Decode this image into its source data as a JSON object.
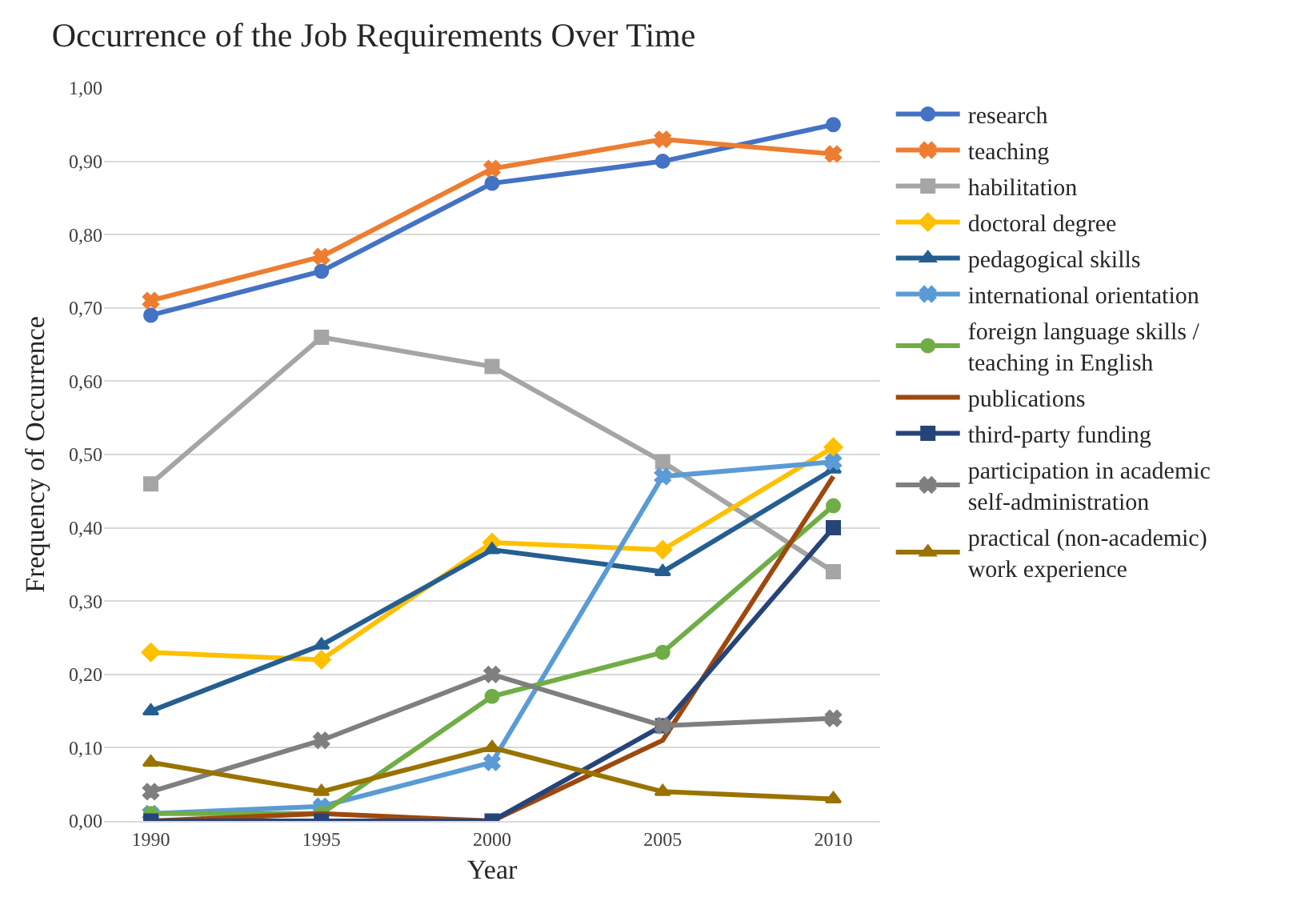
{
  "chart_data": {
    "type": "line",
    "title": "Occurrence of the Job Requirements Over Time",
    "xlabel": "Year",
    "ylabel": "Frequency of Occurrence",
    "categories": [
      "1990",
      "1995",
      "2000",
      "2005",
      "2010"
    ],
    "ylim": [
      0,
      1
    ],
    "yticks": [
      {
        "value": 0,
        "label": "0,00"
      },
      {
        "value": 0.1,
        "label": "0,10"
      },
      {
        "value": 0.2,
        "label": "0,20"
      },
      {
        "value": 0.3,
        "label": "0,30"
      },
      {
        "value": 0.4,
        "label": "0,40"
      },
      {
        "value": 0.5,
        "label": "0,50"
      },
      {
        "value": 0.6,
        "label": "0,60"
      },
      {
        "value": 0.7,
        "label": "0,70"
      },
      {
        "value": 0.8,
        "label": "0,80"
      },
      {
        "value": 0.9,
        "label": "0,90"
      },
      {
        "value": 1,
        "label": "1,00"
      }
    ],
    "grid": "y",
    "legend": "right",
    "line_style": "solid",
    "series": [
      {
        "name": "research",
        "color": "#4472c4",
        "marker": "circle",
        "values": [
          0.69,
          0.75,
          0.87,
          0.9,
          0.95
        ]
      },
      {
        "name": "teaching",
        "color": "#ed7d31",
        "marker": "cross",
        "values": [
          0.71,
          0.77,
          0.89,
          0.93,
          0.91
        ]
      },
      {
        "name": "habilitation",
        "color": "#a5a5a5",
        "marker": "square",
        "values": [
          0.46,
          0.66,
          0.62,
          0.49,
          0.34
        ]
      },
      {
        "name": "doctoral degree",
        "color": "#ffc000",
        "marker": "diamond",
        "values": [
          0.23,
          0.22,
          0.38,
          0.37,
          0.51
        ]
      },
      {
        "name": "pedagogical skills",
        "color": "#255e91",
        "marker": "triangle",
        "values": [
          0.15,
          0.24,
          0.37,
          0.34,
          0.48
        ]
      },
      {
        "name": "international orientation",
        "color": "#5b9bd5",
        "marker": "cross",
        "values": [
          0.01,
          0.02,
          0.08,
          0.47,
          0.49
        ]
      },
      {
        "name": "foreign language skills / teaching in English",
        "color": "#70ad47",
        "marker": "circle",
        "values": [
          0.01,
          0.01,
          0.17,
          0.23,
          0.43
        ]
      },
      {
        "name": "publications",
        "color": "#9e480e",
        "marker": "none",
        "values": [
          0.0,
          0.01,
          0.0,
          0.11,
          0.47
        ]
      },
      {
        "name": "third-party funding",
        "color": "#264478",
        "marker": "square",
        "values": [
          0.0,
          0.0,
          0.0,
          0.13,
          0.4
        ]
      },
      {
        "name": "participation in academic self-administration",
        "color": "#7f7f7f",
        "marker": "cross",
        "values": [
          0.04,
          0.11,
          0.2,
          0.13,
          0.14
        ]
      },
      {
        "name": "practical (non-academic) work experience",
        "color": "#997300",
        "marker": "triangle",
        "values": [
          0.08,
          0.04,
          0.1,
          0.04,
          0.03
        ]
      }
    ]
  }
}
